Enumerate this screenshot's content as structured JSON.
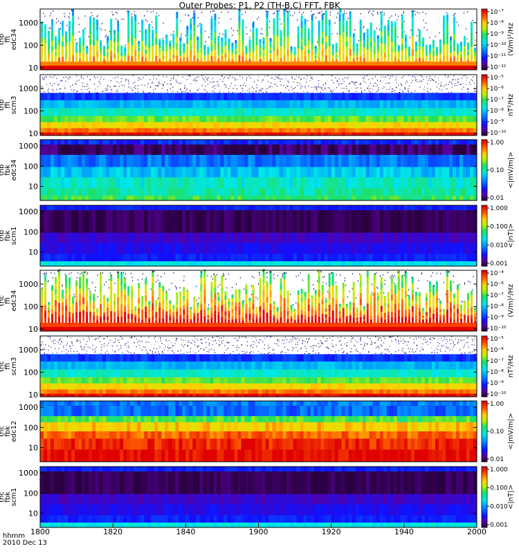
{
  "title": "Outer Probes: P1, P2 (TH-B,C) FFT, FBK",
  "footer": {
    "line1": "hhmm",
    "line2": "2010 Dec 13"
  },
  "chart_data": {
    "type": "heatmap",
    "xaxis": {
      "ticks": [
        "1800",
        "1820",
        "1840",
        "1900",
        "1920",
        "1940",
        "2000"
      ]
    },
    "panels": [
      {
        "ylabel": [
          "thb",
          "ffi",
          "edc34"
        ],
        "yticks": [
          "10",
          "100",
          "1000"
        ],
        "ylog": true,
        "yrange": [
          8,
          4096
        ],
        "colorbar": {
          "label": "(V/m)²/Hz",
          "ticks": [
            "10⁻¹²",
            "10⁻¹¹",
            "10⁻¹⁰",
            "10⁻⁹",
            "10⁻⁸",
            "10⁻⁷"
          ]
        },
        "style": "spiky"
      },
      {
        "ylabel": [
          "thb",
          "ffi",
          "scm3"
        ],
        "yticks": [
          "10",
          "100",
          "1000"
        ],
        "ylog": true,
        "yrange": [
          8,
          4096
        ],
        "colorbar": {
          "label": "nT²/Hz",
          "ticks": [
            "10⁻¹⁰",
            "10⁻⁹",
            "10⁻⁸",
            "10⁻⁷",
            "10⁻⁶",
            "10⁻⁵"
          ]
        },
        "style": "banded"
      },
      {
        "ylabel": [
          "thb",
          "fbk",
          "edc34"
        ],
        "yticks": [
          "10",
          "100",
          "1000"
        ],
        "ylog": true,
        "yrange": [
          2,
          2048
        ],
        "colorbar": {
          "label": "<|mV/m|>",
          "ticks": [
            "0.01",
            "0.10",
            "1.00"
          ]
        },
        "style": "fbk_e"
      },
      {
        "ylabel": [
          "thb",
          "fbk",
          "scm1"
        ],
        "yticks": [
          "10",
          "100",
          "1000"
        ],
        "ylog": true,
        "yrange": [
          2,
          2048
        ],
        "colorbar": {
          "label": "<|nT|>",
          "ticks": [
            "0.001",
            "0.010",
            "0.100",
            "1.000"
          ]
        },
        "style": "fbk_b"
      },
      {
        "ylabel": [
          "thc",
          "ffi",
          "edc34"
        ],
        "yticks": [
          "10",
          "100",
          "1000"
        ],
        "ylog": true,
        "yrange": [
          8,
          4096
        ],
        "colorbar": {
          "label": "(V/m)²/Hz",
          "ticks": [
            "10⁻¹⁰",
            "10⁻⁹",
            "10⁻⁸",
            "10⁻⁷",
            "10⁻⁶",
            "10⁻⁴"
          ]
        },
        "style": "spiky2"
      },
      {
        "ylabel": [
          "thc",
          "ffi",
          "scm3"
        ],
        "yticks": [
          "10",
          "100",
          "1000"
        ],
        "ylog": true,
        "yrange": [
          8,
          4096
        ],
        "colorbar": {
          "label": "nT²/Hz",
          "ticks": [
            "10⁻¹⁰",
            "10⁻⁹",
            "10⁻⁸",
            "10⁻⁷",
            "10⁻⁶",
            "10⁻⁵"
          ]
        },
        "style": "banded2"
      },
      {
        "ylabel": [
          "thc",
          "fbk",
          "edc12"
        ],
        "yticks": [
          "10",
          "100",
          "1000"
        ],
        "ylog": true,
        "yrange": [
          2,
          2048
        ],
        "colorbar": {
          "label": "<|mV/m|>",
          "ticks": [
            "0.01",
            "0.10",
            "1.00"
          ]
        },
        "style": "fbk_e2"
      },
      {
        "ylabel": [
          "thc",
          "fbk",
          "scm1"
        ],
        "yticks": [
          "10",
          "100",
          "1000"
        ],
        "ylog": true,
        "yrange": [
          2,
          2048
        ],
        "colorbar": {
          "label": "<|nT|>",
          "ticks": [
            "0.001",
            "0.010",
            "0.100",
            "1.000"
          ]
        },
        "style": "fbk_b"
      }
    ]
  }
}
